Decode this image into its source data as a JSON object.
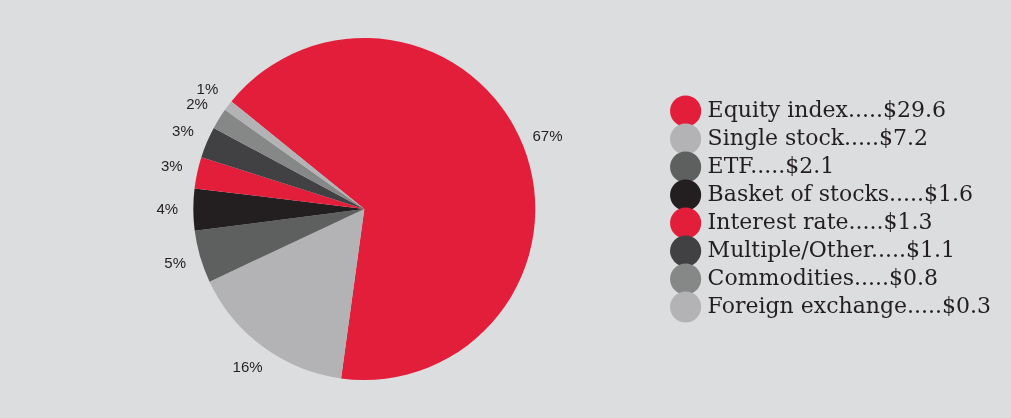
{
  "chart_data": {
    "type": "pie",
    "categories": [
      "Equity index.....$29.6",
      "Single stock.....$7.2",
      "ETF.....$2.1",
      "Basket of stocks.....$1.6",
      "Interest rate.....$1.3",
      "Multiple/Other.....$1.1",
      "Commodities.....$0.8",
      "Foreign exchange.....$0.3"
    ],
    "values": [
      67,
      16,
      5,
      4,
      3,
      3,
      2,
      1
    ],
    "value_labels": [
      "67%",
      "16%",
      "5%",
      "4%",
      "3%",
      "3%",
      "2%",
      "1%"
    ],
    "colors": [
      "#e31e3a",
      "#b3b3b5",
      "#5e605f",
      "#231f20",
      "#e31e3a",
      "#414042",
      "#868887",
      "#b3b3b5"
    ],
    "legend": "right"
  }
}
